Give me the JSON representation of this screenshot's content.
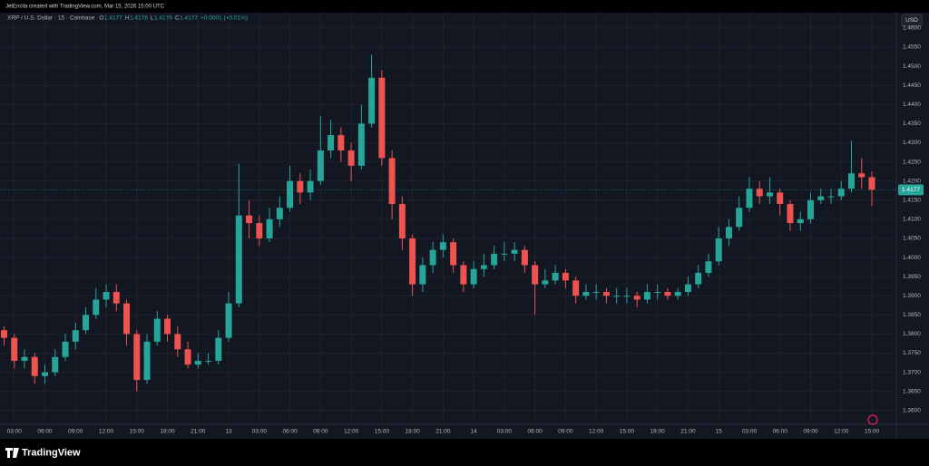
{
  "header": "JetEncila created with TradingView.com, Mar 15, 2026 15:00 UTC",
  "brand": "TradingView",
  "currency": "USD",
  "chart_data": {
    "type": "candlestick",
    "title": "XRP / U.S. Dollar · 15 · Coinbase",
    "legend_values": [
      {
        "label": "O",
        "value": 1.4177
      },
      {
        "label": "H",
        "value": 1.4178
      },
      {
        "label": "L",
        "value": 1.4176
      },
      {
        "label": "C",
        "value": 1.4177
      }
    ],
    "change": "+0.0001 (+0.01%)",
    "up_color": "#26a69a",
    "down_color": "#ef5350",
    "grid": true,
    "last_price": 1.4177,
    "x": [
      2,
      3,
      4,
      5,
      6,
      7,
      8,
      9,
      10,
      11,
      12,
      13,
      14,
      15,
      16,
      17,
      18,
      19,
      20,
      21,
      22,
      23,
      24,
      25,
      26,
      27,
      28,
      29,
      30,
      31,
      32,
      33,
      34,
      35,
      36,
      37,
      38,
      39,
      40,
      41,
      42,
      43,
      44,
      45,
      46,
      47,
      48,
      49,
      50,
      51,
      52,
      53,
      54,
      55,
      56,
      57,
      58,
      59,
      60,
      61,
      62,
      63,
      64,
      65,
      66,
      67,
      68,
      69,
      70,
      71,
      72,
      73,
      74,
      75,
      76,
      77,
      78,
      79,
      80,
      81,
      82,
      83,
      84,
      85,
      86,
      87
    ],
    "open": [
      1.381,
      1.379,
      1.373,
      1.374,
      1.369,
      1.37,
      1.374,
      1.378,
      1.381,
      1.385,
      1.389,
      1.391,
      1.388,
      1.38,
      1.368,
      1.378,
      1.384,
      1.38,
      1.376,
      1.372,
      1.373,
      1.373,
      1.379,
      1.388,
      1.411,
      1.409,
      1.405,
      1.41,
      1.413,
      1.42,
      1.417,
      1.42,
      1.428,
      1.432,
      1.428,
      1.424,
      1.435,
      1.447,
      1.426,
      1.414,
      1.405,
      1.393,
      1.398,
      1.402,
      1.404,
      1.398,
      1.393,
      1.397,
      1.398,
      1.401,
      1.401,
      1.402,
      1.398,
      1.393,
      1.394,
      1.396,
      1.394,
      1.39,
      1.391,
      1.391,
      1.39,
      1.39,
      1.39,
      1.389,
      1.391,
      1.391,
      1.39,
      1.391,
      1.393,
      1.396,
      1.399,
      1.405,
      1.408,
      1.413,
      1.418,
      1.416,
      1.417,
      1.414,
      1.409,
      1.41,
      1.415,
      1.416,
      1.416,
      1.418,
      1.422,
      1.421
    ],
    "high": [
      1.382,
      1.38,
      1.376,
      1.375,
      1.372,
      1.376,
      1.38,
      1.383,
      1.387,
      1.392,
      1.393,
      1.393,
      1.389,
      1.381,
      1.38,
      1.386,
      1.385,
      1.382,
      1.378,
      1.375,
      1.375,
      1.381,
      1.391,
      1.4245,
      1.415,
      1.411,
      1.413,
      1.416,
      1.424,
      1.422,
      1.423,
      1.437,
      1.436,
      1.434,
      1.43,
      1.44,
      1.453,
      1.449,
      1.428,
      1.416,
      1.406,
      1.4,
      1.404,
      1.406,
      1.405,
      1.399,
      1.399,
      1.401,
      1.403,
      1.404,
      1.404,
      1.403,
      1.399,
      1.397,
      1.398,
      1.397,
      1.395,
      1.393,
      1.393,
      1.392,
      1.392,
      1.392,
      1.391,
      1.393,
      1.393,
      1.392,
      1.392,
      1.395,
      1.398,
      1.401,
      1.408,
      1.41,
      1.416,
      1.421,
      1.42,
      1.421,
      1.418,
      1.415,
      1.412,
      1.417,
      1.418,
      1.418,
      1.42,
      1.4305,
      1.426,
      1.4225
    ],
    "low": [
      1.377,
      1.371,
      1.371,
      1.367,
      1.367,
      1.369,
      1.373,
      1.376,
      1.38,
      1.384,
      1.387,
      1.386,
      1.377,
      1.365,
      1.367,
      1.377,
      1.378,
      1.374,
      1.371,
      1.371,
      1.372,
      1.372,
      1.378,
      1.387,
      1.405,
      1.403,
      1.404,
      1.408,
      1.412,
      1.414,
      1.415,
      1.419,
      1.426,
      1.425,
      1.42,
      1.423,
      1.434,
      1.424,
      1.41,
      1.402,
      1.39,
      1.391,
      1.396,
      1.4,
      1.396,
      1.391,
      1.392,
      1.395,
      1.397,
      1.399,
      1.399,
      1.396,
      1.385,
      1.392,
      1.393,
      1.392,
      1.388,
      1.389,
      1.389,
      1.388,
      1.388,
      1.388,
      1.387,
      1.388,
      1.389,
      1.389,
      1.389,
      1.39,
      1.392,
      1.395,
      1.398,
      1.403,
      1.407,
      1.412,
      1.414,
      1.414,
      1.411,
      1.407,
      1.407,
      1.409,
      1.414,
      1.414,
      1.415,
      1.417,
      1.418,
      1.4135
    ],
    "close": [
      1.379,
      1.373,
      1.374,
      1.369,
      1.37,
      1.374,
      1.378,
      1.381,
      1.385,
      1.389,
      1.391,
      1.388,
      1.38,
      1.368,
      1.378,
      1.384,
      1.38,
      1.376,
      1.372,
      1.373,
      1.373,
      1.379,
      1.388,
      1.411,
      1.409,
      1.405,
      1.41,
      1.413,
      1.42,
      1.417,
      1.42,
      1.428,
      1.432,
      1.428,
      1.424,
      1.435,
      1.447,
      1.426,
      1.414,
      1.405,
      1.393,
      1.398,
      1.402,
      1.404,
      1.398,
      1.393,
      1.397,
      1.398,
      1.401,
      1.401,
      1.402,
      1.398,
      1.393,
      1.394,
      1.396,
      1.394,
      1.39,
      1.391,
      1.391,
      1.39,
      1.39,
      1.39,
      1.389,
      1.391,
      1.391,
      1.39,
      1.391,
      1.393,
      1.396,
      1.399,
      1.405,
      1.408,
      1.413,
      1.418,
      1.416,
      1.417,
      1.414,
      1.409,
      1.41,
      1.415,
      1.416,
      1.416,
      1.418,
      1.422,
      1.421,
      1.4177
    ],
    "xlim": [
      1.6,
      89.4
    ],
    "xticks": [
      {
        "value": 3,
        "label": "03:00"
      },
      {
        "value": 6,
        "label": "06:00"
      },
      {
        "value": 9,
        "label": "09:00"
      },
      {
        "value": 12,
        "label": "12:00"
      },
      {
        "value": 15,
        "label": "15:00"
      },
      {
        "value": 18,
        "label": "18:00"
      },
      {
        "value": 21,
        "label": "21:00"
      },
      {
        "value": 24,
        "label": "13"
      },
      {
        "value": 27,
        "label": "03:00"
      },
      {
        "value": 30,
        "label": "06:00"
      },
      {
        "value": 33,
        "label": "09:00"
      },
      {
        "value": 36,
        "label": "12:00"
      },
      {
        "value": 39,
        "label": "15:00"
      },
      {
        "value": 42,
        "label": "18:00"
      },
      {
        "value": 45,
        "label": "21:00"
      },
      {
        "value": 48,
        "label": "14"
      },
      {
        "value": 51,
        "label": "03:00"
      },
      {
        "value": 54,
        "label": "06:00"
      },
      {
        "value": 57,
        "label": "09:00"
      },
      {
        "value": 60,
        "label": "12:00"
      },
      {
        "value": 63,
        "label": "15:00"
      },
      {
        "value": 66,
        "label": "18:00"
      },
      {
        "value": 69,
        "label": "21:00"
      },
      {
        "value": 72,
        "label": "15"
      },
      {
        "value": 75,
        "label": "03:00"
      },
      {
        "value": 78,
        "label": "06:00"
      },
      {
        "value": 81,
        "label": "09:00"
      },
      {
        "value": 84,
        "label": "12:00"
      },
      {
        "value": 87,
        "label": "15:00"
      }
    ],
    "ylim": [
      1.3564,
      1.4614
    ],
    "yticks": [
      {
        "value": 1.36,
        "label": "1.3600"
      },
      {
        "value": 1.365,
        "label": "1.3650"
      },
      {
        "value": 1.37,
        "label": "1.3700"
      },
      {
        "value": 1.375,
        "label": "1.3750"
      },
      {
        "value": 1.38,
        "label": "1.3800"
      },
      {
        "value": 1.385,
        "label": "1.3850"
      },
      {
        "value": 1.39,
        "label": "1.3900"
      },
      {
        "value": 1.395,
        "label": "1.3950"
      },
      {
        "value": 1.4,
        "label": "1.4000"
      },
      {
        "value": 1.405,
        "label": "1.4050"
      },
      {
        "value": 1.41,
        "label": "1.4100"
      },
      {
        "value": 1.415,
        "label": "1.4150"
      },
      {
        "value": 1.42,
        "label": "1.4200"
      },
      {
        "value": 1.425,
        "label": "1.4250"
      },
      {
        "value": 1.43,
        "label": "1.4300"
      },
      {
        "value": 1.435,
        "label": "1.4350"
      },
      {
        "value": 1.44,
        "label": "1.4400"
      },
      {
        "value": 1.445,
        "label": "1.4450"
      },
      {
        "value": 1.45,
        "label": "1.4500"
      },
      {
        "value": 1.455,
        "label": "1.4550"
      },
      {
        "value": 1.46,
        "label": "1.4600"
      }
    ]
  }
}
